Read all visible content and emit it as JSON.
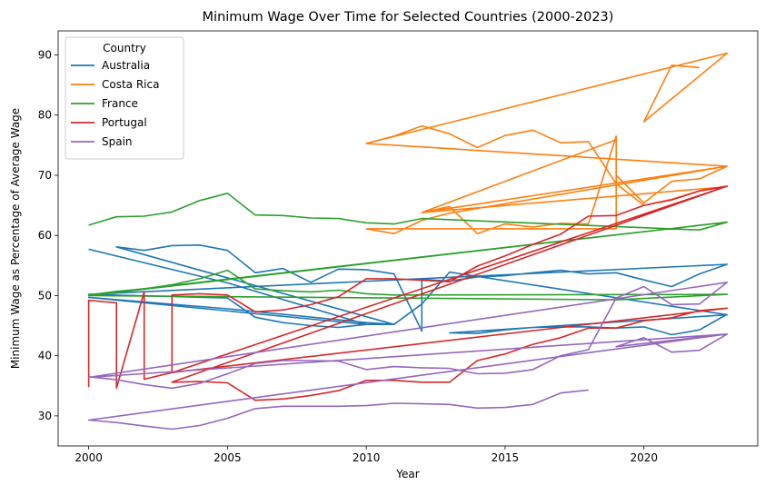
{
  "chart_data": {
    "type": "line",
    "title": "Minimum Wage Over Time for Selected Countries (2000-2023)",
    "xlabel": "Year",
    "ylabel": "Minimum Wage as Percentage of Average Wage",
    "xlim": [
      1998.9,
      2024.1
    ],
    "ylim": [
      25,
      94
    ],
    "xticks": [
      2000,
      2005,
      2010,
      2015,
      2020
    ],
    "yticks": [
      30,
      40,
      50,
      60,
      70,
      80,
      90
    ],
    "grid": false,
    "legend": {
      "title": "Country",
      "placement": "top-left"
    },
    "series": [
      {
        "name": "Australia",
        "color": "#1f77b4",
        "points": [
          [
            2000,
            57.7
          ],
          [
            2005,
            52.1
          ],
          [
            2010,
            45.2
          ],
          [
            2011,
            45.2
          ],
          [
            2001,
            58.1
          ],
          [
            2002,
            57.5
          ],
          [
            2003,
            58.3
          ],
          [
            2004,
            58.4
          ],
          [
            2005,
            57.5
          ],
          [
            2006,
            53.8
          ],
          [
            2007,
            54.5
          ],
          [
            2008,
            52.2
          ],
          [
            2009,
            54.4
          ],
          [
            2010,
            54.3
          ],
          [
            2011,
            53.6
          ],
          [
            2012,
            44.1
          ],
          [
            2012,
            52.7
          ],
          [
            2013,
            52.4
          ],
          [
            2014,
            53.1
          ],
          [
            2015,
            53.3
          ],
          [
            2016,
            53.8
          ],
          [
            2017,
            54.2
          ],
          [
            2018,
            53.6
          ],
          [
            2019,
            53.8
          ],
          [
            2020,
            52.6
          ],
          [
            2021,
            51.5
          ],
          [
            2022,
            53.6
          ],
          [
            2023,
            55.2
          ],
          [
            2000,
            50.2
          ],
          [
            2005,
            49.6
          ],
          [
            2006,
            46.4
          ],
          [
            2007,
            45.5
          ],
          [
            2008,
            45.0
          ],
          [
            2009,
            44.7
          ],
          [
            2010,
            45.2
          ],
          [
            2000,
            49.7
          ],
          [
            2005,
            47.8
          ],
          [
            2010,
            45.5
          ],
          [
            2011,
            45.2
          ],
          [
            2012,
            48.6
          ],
          [
            2013,
            53.9
          ],
          [
            2023,
            46.8
          ],
          [
            2013,
            43.8
          ],
          [
            2014,
            43.7
          ],
          [
            2015,
            44.3
          ],
          [
            2016,
            44.7
          ],
          [
            2017,
            44.8
          ],
          [
            2018,
            44.8
          ],
          [
            2019,
            44.6
          ],
          [
            2020,
            44.8
          ],
          [
            2021,
            43.5
          ],
          [
            2022,
            44.3
          ],
          [
            2023,
            46.9
          ]
        ]
      },
      {
        "name": "Costa Rica",
        "color": "#ff7f0e",
        "points": [
          [
            2010,
            75.3
          ],
          [
            2011,
            76.5
          ],
          [
            2012,
            78.2
          ],
          [
            2013,
            76.9
          ],
          [
            2014,
            74.6
          ],
          [
            2015,
            76.6
          ],
          [
            2016,
            77.5
          ],
          [
            2017,
            75.4
          ],
          [
            2018,
            75.6
          ],
          [
            2019,
            68.6
          ],
          [
            2020,
            65.0
          ],
          [
            2021,
            66.0
          ],
          [
            2022,
            67.4
          ],
          [
            2023,
            68.1
          ],
          [
            2012,
            63.8
          ],
          [
            2013,
            64.8
          ],
          [
            2014,
            60.3
          ],
          [
            2015,
            61.9
          ],
          [
            2016,
            61.4
          ],
          [
            2017,
            62.0
          ],
          [
            2018,
            61.9
          ],
          [
            2019,
            76.5
          ],
          [
            2019,
            61.1
          ],
          [
            2010,
            61.1
          ],
          [
            2011,
            60.3
          ],
          [
            2012,
            62.5
          ],
          [
            2013,
            63.7
          ],
          [
            2023,
            71.5
          ],
          [
            2012,
            63.8
          ],
          [
            2019,
            75.9
          ],
          [
            2019,
            70.0
          ],
          [
            2020,
            65.4
          ],
          [
            2021,
            69.0
          ],
          [
            2022,
            69.4
          ],
          [
            2023,
            71.5
          ],
          [
            2010,
            75.3
          ],
          [
            2023,
            90.3
          ],
          [
            2020,
            78.9
          ],
          [
            2021,
            88.3
          ],
          [
            2022,
            87.9
          ]
        ]
      },
      {
        "name": "France",
        "color": "#2ca02c",
        "points": [
          [
            2000,
            61.7
          ],
          [
            2001,
            63.1
          ],
          [
            2002,
            63.2
          ],
          [
            2003,
            63.9
          ],
          [
            2004,
            65.8
          ],
          [
            2005,
            67.0
          ],
          [
            2006,
            63.4
          ],
          [
            2007,
            63.3
          ],
          [
            2008,
            62.9
          ],
          [
            2009,
            62.8
          ],
          [
            2010,
            62.1
          ],
          [
            2011,
            61.9
          ],
          [
            2012,
            62.8
          ],
          [
            2022,
            60.9
          ],
          [
            2023,
            62.2
          ],
          [
            2000,
            50.1
          ],
          [
            2001,
            50.7
          ],
          [
            2002,
            51.1
          ],
          [
            2003,
            51.8
          ],
          [
            2004,
            52.8
          ],
          [
            2005,
            54.2
          ],
          [
            2006,
            51.1
          ],
          [
            2007,
            50.8
          ],
          [
            2008,
            50.6
          ],
          [
            2009,
            50.9
          ],
          [
            2010,
            50.3
          ],
          [
            2011,
            50.1
          ],
          [
            2023,
            50.2
          ],
          [
            2019,
            49.3
          ],
          [
            2000,
            50.0
          ],
          [
            2023,
            62.2
          ]
        ]
      },
      {
        "name": "Portugal",
        "color": "#d62728",
        "points": [
          [
            2000,
            34.8
          ],
          [
            2000,
            49.2
          ],
          [
            2001,
            48.8
          ],
          [
            2001,
            34.6
          ],
          [
            2002,
            50.6
          ],
          [
            2002,
            36.1
          ],
          [
            2003,
            37.2
          ],
          [
            2003,
            50.1
          ],
          [
            2004,
            50.3
          ],
          [
            2005,
            50.1
          ],
          [
            2006,
            47.3
          ],
          [
            2007,
            47.6
          ],
          [
            2008,
            48.5
          ],
          [
            2009,
            49.8
          ],
          [
            2010,
            52.8
          ],
          [
            2011,
            52.8
          ],
          [
            2013,
            52.3
          ],
          [
            2014,
            54.9
          ],
          [
            2015,
            56.6
          ],
          [
            2016,
            58.5
          ],
          [
            2017,
            60.2
          ],
          [
            2018,
            63.2
          ],
          [
            2019,
            63.3
          ],
          [
            2020,
            65.0
          ],
          [
            2021,
            65.9
          ],
          [
            2022,
            67.4
          ],
          [
            2023,
            68.2
          ],
          [
            2003,
            35.6
          ],
          [
            2004,
            35.7
          ],
          [
            2005,
            35.5
          ],
          [
            2006,
            32.6
          ],
          [
            2007,
            32.8
          ],
          [
            2008,
            33.4
          ],
          [
            2009,
            34.2
          ],
          [
            2010,
            35.9
          ],
          [
            2011,
            35.9
          ],
          [
            2012,
            35.6
          ],
          [
            2013,
            35.6
          ],
          [
            2014,
            39.2
          ],
          [
            2015,
            40.3
          ],
          [
            2016,
            41.9
          ],
          [
            2017,
            43.0
          ],
          [
            2018,
            44.6
          ],
          [
            2019,
            44.6
          ],
          [
            2020,
            45.8
          ],
          [
            2021,
            46.3
          ],
          [
            2022,
            47.5
          ],
          [
            2023,
            47.9
          ],
          [
            2003,
            37.2
          ],
          [
            2023,
            68.2
          ]
        ]
      },
      {
        "name": "Spain",
        "color": "#9467bd",
        "points": [
          [
            2000,
            36.5
          ],
          [
            2001,
            36.0
          ],
          [
            2002,
            35.2
          ],
          [
            2003,
            34.6
          ],
          [
            2004,
            35.4
          ],
          [
            2005,
            37.0
          ],
          [
            2006,
            38.7
          ],
          [
            2007,
            39.2
          ],
          [
            2008,
            39.2
          ],
          [
            2009,
            39.1
          ],
          [
            2010,
            37.7
          ],
          [
            2011,
            38.2
          ],
          [
            2012,
            38.0
          ],
          [
            2013,
            37.9
          ],
          [
            2014,
            37.0
          ],
          [
            2015,
            37.1
          ],
          [
            2016,
            37.7
          ],
          [
            2017,
            40.0
          ],
          [
            2018,
            41.0
          ],
          [
            2019,
            49.6
          ],
          [
            2020,
            51.5
          ],
          [
            2021,
            48.5
          ],
          [
            2022,
            48.6
          ],
          [
            2023,
            52.2
          ],
          [
            2000,
            36.4
          ],
          [
            2023,
            43.6
          ],
          [
            2019,
            41.5
          ],
          [
            2020,
            43.0
          ],
          [
            2021,
            40.6
          ],
          [
            2022,
            40.9
          ],
          [
            2023,
            43.6
          ],
          [
            2000,
            29.3
          ],
          [
            2001,
            28.9
          ],
          [
            2002,
            28.3
          ],
          [
            2003,
            27.8
          ],
          [
            2004,
            28.4
          ],
          [
            2005,
            29.6
          ],
          [
            2006,
            31.2
          ],
          [
            2007,
            31.6
          ],
          [
            2008,
            31.6
          ],
          [
            2009,
            31.6
          ],
          [
            2010,
            31.7
          ],
          [
            2011,
            32.1
          ],
          [
            2012,
            32.0
          ],
          [
            2013,
            31.9
          ],
          [
            2014,
            31.3
          ],
          [
            2015,
            31.4
          ],
          [
            2016,
            31.9
          ],
          [
            2017,
            33.8
          ],
          [
            2018,
            34.3
          ]
        ]
      }
    ]
  }
}
